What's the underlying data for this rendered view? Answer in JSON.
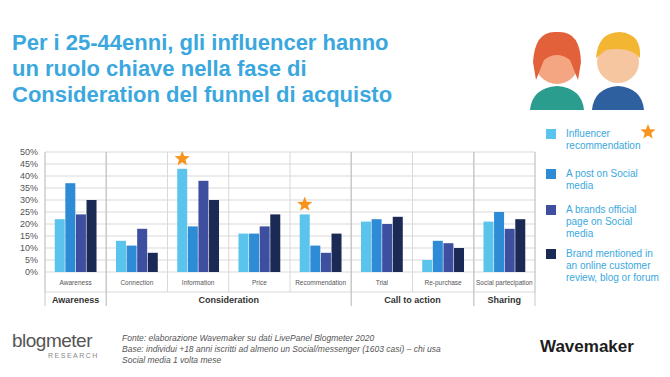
{
  "chart_data": {
    "type": "bar",
    "title": "Per i 25-44enni, gli influencer hanno\nun ruolo chiave nella fase di\nConsideration del funnel di acquisto",
    "categories": [
      "Awareness",
      "Connection",
      "Information",
      "Price",
      "Recommendation",
      "Trial",
      "Re-purchase",
      "Social partecipation"
    ],
    "groups": [
      {
        "label": "Awareness",
        "span": 1
      },
      {
        "label": "Consideration",
        "span": 4
      },
      {
        "label": "Call to action",
        "span": 2
      },
      {
        "label": "Sharing",
        "span": 1
      }
    ],
    "series": [
      {
        "name": "Influencer recommendation",
        "color": "#5bc4ec",
        "values": [
          22,
          13,
          43,
          16,
          24,
          21,
          5,
          21
        ]
      },
      {
        "name": "A post on Social media",
        "color": "#2e8bd6",
        "values": [
          37,
          11,
          19,
          16,
          11,
          22,
          13,
          25
        ]
      },
      {
        "name": "A brands official page on Social media",
        "color": "#3f4fa0",
        "values": [
          24,
          18,
          38,
          19,
          8,
          20,
          12,
          18
        ]
      },
      {
        "name": "Brand mentioned in an online customer review, blog or forum",
        "color": "#1a2a55",
        "values": [
          30,
          8,
          30,
          24,
          16,
          23,
          10,
          22
        ]
      }
    ],
    "annotations": [
      {
        "category": 2,
        "series": 0,
        "marker": "star"
      },
      {
        "category": 4,
        "series": 0,
        "marker": "star"
      }
    ],
    "ylim": [
      0,
      50
    ],
    "yticks": [
      {
        "value": 0,
        "label": "0%"
      },
      {
        "value": 5,
        "label": "5%"
      },
      {
        "value": 10,
        "label": "10%"
      },
      {
        "value": 15,
        "label": "15%"
      },
      {
        "value": 20,
        "label": "20%"
      },
      {
        "value": 25,
        "label": "25%"
      },
      {
        "value": 30,
        "label": "30%"
      },
      {
        "value": 35,
        "label": "35%"
      },
      {
        "value": 40,
        "label": "40%"
      },
      {
        "value": 45,
        "label": "45%"
      },
      {
        "value": 50,
        "label": "50%"
      }
    ],
    "grid": true,
    "legend": "right",
    "source": "Fonte: elaborazione Wavemaker su dati LivePanel Blogmeter 2020",
    "base": "Base: individui +18 anni iscritti ad almeno un Social/messenger (1603 casi) – chi usa Social media 1 volta mese",
    "logos": [
      "blogmeter",
      "RESEARCH",
      "Wavemaker"
    ]
  }
}
